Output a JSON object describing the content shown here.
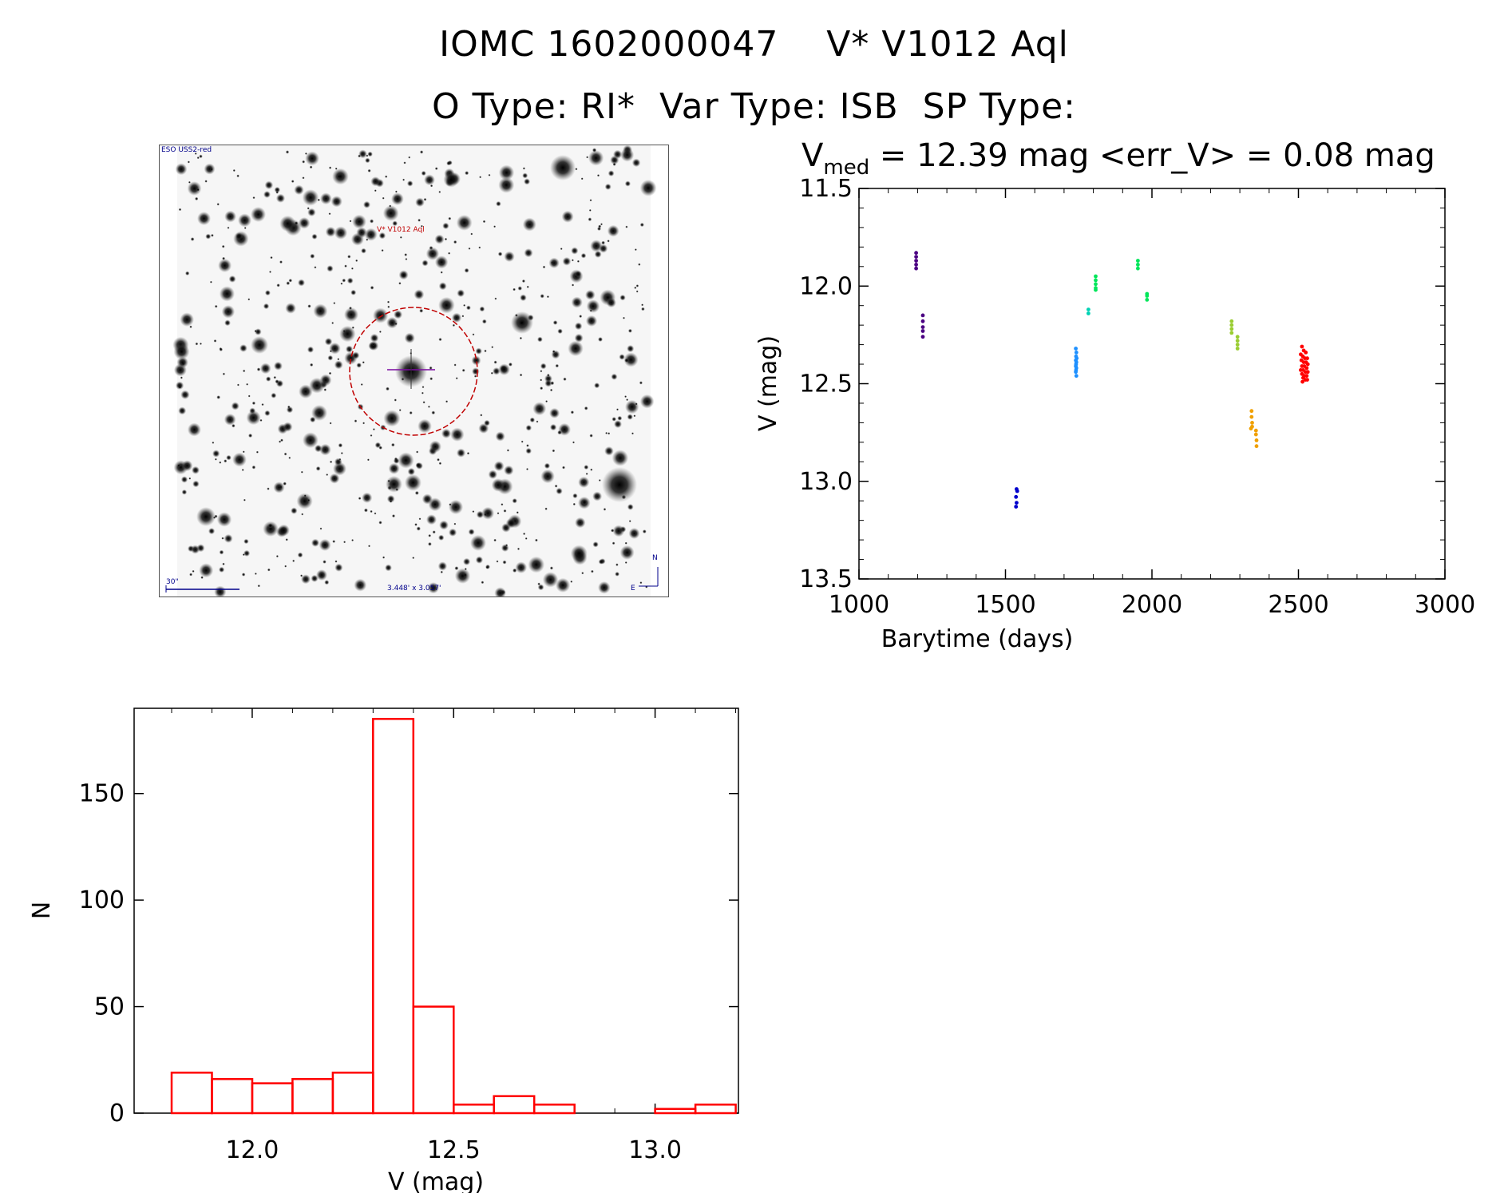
{
  "header": {
    "title_line1": "IOMC 1602000047    V* V1012 Aql",
    "title_line2": "O Type: RI*  Var Type: ISB  SP Type:"
  },
  "finder_chart": {
    "survey_label": "ESO USS2-red",
    "target_label": "V* V1012 Aql",
    "scale_label": "30\"",
    "size_label": "3.448' x 3.057'",
    "compass_n": "N",
    "compass_e": "E",
    "circle_color": "#c00000"
  },
  "chart_data": [
    {
      "type": "scatter",
      "title_main": "V",
      "title_sub": "med",
      "title_rest": " = 12.39 mag <err_V> = 0.08 mag",
      "xlabel": "Barytime (days)",
      "ylabel": "V (mag)",
      "xlim": [
        1000,
        3000
      ],
      "ylim": [
        13.5,
        11.5
      ],
      "xticks": [
        "1000",
        "1500",
        "2000",
        "2500",
        "3000"
      ],
      "yticks": [
        "11.5",
        "12.0",
        "12.5",
        "13.0",
        "13.5"
      ],
      "series": [
        {
          "color": "#4b0082",
          "points": [
            [
              1195,
              11.83
            ],
            [
              1195,
              11.85
            ],
            [
              1195,
              11.87
            ],
            [
              1195,
              11.89
            ],
            [
              1195,
              11.91
            ],
            [
              1218,
              12.15
            ],
            [
              1218,
              12.18
            ],
            [
              1218,
              12.21
            ],
            [
              1218,
              12.23
            ],
            [
              1218,
              12.26
            ]
          ]
        },
        {
          "color": "#0000cc",
          "points": [
            [
              1538,
              13.04
            ],
            [
              1540,
              13.05
            ],
            [
              1536,
              13.08
            ],
            [
              1538,
              13.11
            ],
            [
              1536,
              13.13
            ]
          ]
        },
        {
          "color": "#1e90ff",
          "points": [
            [
              1740,
              12.32
            ],
            [
              1742,
              12.34
            ],
            [
              1741,
              12.36
            ],
            [
              1743,
              12.37
            ],
            [
              1740,
              12.38
            ],
            [
              1742,
              12.39
            ],
            [
              1741,
              12.4
            ],
            [
              1740,
              12.41
            ],
            [
              1742,
              12.42
            ],
            [
              1741,
              12.43
            ],
            [
              1740,
              12.44
            ],
            [
              1742,
              12.46
            ]
          ]
        },
        {
          "color": "#00d2b4",
          "points": [
            [
              1783,
              12.12
            ],
            [
              1783,
              12.14
            ]
          ]
        },
        {
          "color": "#00e65a",
          "points": [
            [
              1808,
              11.95
            ],
            [
              1808,
              11.97
            ],
            [
              1808,
              11.99
            ],
            [
              1808,
              12.01
            ],
            [
              1808,
              12.02
            ],
            [
              1952,
              11.87
            ],
            [
              1952,
              11.89
            ],
            [
              1952,
              11.91
            ],
            [
              1983,
              12.04
            ],
            [
              1983,
              12.05
            ],
            [
              1983,
              12.07
            ]
          ]
        },
        {
          "color": "#9acd32",
          "points": [
            [
              2272,
              12.18
            ],
            [
              2272,
              12.2
            ],
            [
              2272,
              12.22
            ],
            [
              2272,
              12.24
            ],
            [
              2292,
              12.26
            ],
            [
              2292,
              12.28
            ],
            [
              2292,
              12.3
            ],
            [
              2292,
              12.32
            ]
          ]
        },
        {
          "color": "#f0a000",
          "points": [
            [
              2340,
              12.64
            ],
            [
              2340,
              12.67
            ],
            [
              2342,
              12.7
            ],
            [
              2342,
              12.72
            ],
            [
              2338,
              12.73
            ],
            [
              2355,
              12.74
            ],
            [
              2355,
              12.76
            ],
            [
              2357,
              12.79
            ],
            [
              2357,
              12.82
            ]
          ]
        },
        {
          "color": "#ff0000",
          "points": [
            [
              2512,
              12.31
            ],
            [
              2518,
              12.33
            ],
            [
              2525,
              12.34
            ],
            [
              2508,
              12.35
            ],
            [
              2515,
              12.36
            ],
            [
              2522,
              12.37
            ],
            [
              2530,
              12.37
            ],
            [
              2510,
              12.38
            ],
            [
              2518,
              12.39
            ],
            [
              2526,
              12.39
            ],
            [
              2532,
              12.4
            ],
            [
              2512,
              12.41
            ],
            [
              2520,
              12.41
            ],
            [
              2528,
              12.42
            ],
            [
              2508,
              12.43
            ],
            [
              2516,
              12.43
            ],
            [
              2524,
              12.44
            ],
            [
              2532,
              12.44
            ],
            [
              2512,
              12.45
            ],
            [
              2520,
              12.46
            ],
            [
              2528,
              12.46
            ],
            [
              2516,
              12.47
            ],
            [
              2524,
              12.48
            ],
            [
              2514,
              12.49
            ],
            [
              2530,
              12.48
            ]
          ]
        }
      ]
    },
    {
      "type": "bar",
      "xlabel": "V (mag)",
      "ylabel": "N",
      "xlim": [
        11.8,
        13.3
      ],
      "ylim": [
        0,
        190
      ],
      "xticks": [
        "12.0",
        "12.5",
        "13.0"
      ],
      "yticks": [
        "0",
        "50",
        "100",
        "150"
      ],
      "bar_color": "#ff0000",
      "bin_edges": [
        11.8,
        11.9,
        12.0,
        12.1,
        12.2,
        12.3,
        12.4,
        12.5,
        12.6,
        12.7,
        12.8,
        12.9,
        13.0,
        13.1,
        13.2
      ],
      "counts": [
        19,
        16,
        14,
        16,
        19,
        185,
        50,
        4,
        8,
        4,
        0,
        0,
        2,
        4
      ]
    }
  ]
}
